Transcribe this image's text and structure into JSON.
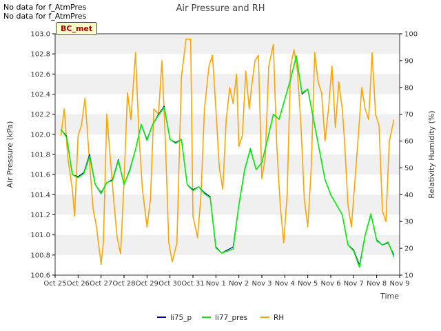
{
  "notes": [
    "No data for f_AtmPres",
    "No data for f_AtmPres"
  ],
  "badge": "BC_met",
  "chart_data": {
    "type": "line",
    "title": "Air Pressure and RH",
    "xlabel": "Time",
    "ylabel": "Air Pressure (kPa)",
    "y2label": "Relativity Humidity (%)",
    "x_ticks": [
      "Oct 25",
      "Oct 26",
      "Oct 27",
      "Oct 28",
      "Oct 29",
      "Oct 30",
      "Oct 31",
      "Nov 1",
      "Nov 2",
      "Nov 3",
      "Nov 4",
      "Nov 5",
      "Nov 6",
      "Nov 7",
      "Nov 8",
      "Nov 9"
    ],
    "xlim": [
      0,
      15
    ],
    "ylim": [
      100.6,
      103.0
    ],
    "y_ticks": [
      100.6,
      100.8,
      101.0,
      101.2,
      101.4,
      101.6,
      101.8,
      102.0,
      102.2,
      102.4,
      102.6,
      102.8,
      103.0
    ],
    "y2lim": [
      10,
      100
    ],
    "y2_ticks": [
      10,
      20,
      30,
      40,
      50,
      60,
      70,
      80,
      90,
      100
    ],
    "grid": "horizontal bands",
    "legend_position": "bottom",
    "colors": {
      "li75_p": "#0000aa",
      "li77_pres": "#00ee00",
      "RH": "#ffa500",
      "band": "#f0f0f0"
    },
    "series": [
      {
        "name": "li75_p",
        "axis": "left",
        "x": [
          0.25,
          0.5,
          0.75,
          1.0,
          1.25,
          1.5,
          1.75,
          2.0,
          2.25,
          2.5,
          2.75,
          3.0,
          3.25,
          3.5,
          3.75,
          4.0,
          4.25,
          4.5,
          4.75,
          5.0,
          5.25,
          5.5,
          5.75,
          6.0,
          6.25,
          6.5,
          6.75,
          7.0,
          7.25,
          7.5,
          7.75,
          8.0,
          8.25,
          8.5,
          8.75,
          9.0,
          9.25,
          9.5,
          9.75,
          10.0,
          10.25,
          10.5,
          10.75,
          11.0,
          11.25,
          11.5,
          11.75,
          12.0,
          12.25,
          12.5,
          12.75,
          13.0,
          13.25,
          13.5,
          13.75,
          14.0,
          14.25,
          14.5,
          14.75
        ],
        "values": [
          102.05,
          101.98,
          101.6,
          101.58,
          101.62,
          101.8,
          101.5,
          101.42,
          101.52,
          101.55,
          101.75,
          101.5,
          101.65,
          101.85,
          102.1,
          101.95,
          102.1,
          102.2,
          102.28,
          101.95,
          101.92,
          101.95,
          101.5,
          101.45,
          101.48,
          101.42,
          101.38,
          100.88,
          100.82,
          100.85,
          100.88,
          101.3,
          101.65,
          101.85,
          101.65,
          101.72,
          101.95,
          102.2,
          102.15,
          102.35,
          102.55,
          102.78,
          102.4,
          102.45,
          102.15,
          101.85,
          101.55,
          101.4,
          101.3,
          101.2,
          100.9,
          100.85,
          100.7,
          101.0,
          101.2,
          100.95,
          100.9,
          100.92,
          100.8
        ]
      },
      {
        "name": "li77_pres",
        "axis": "left",
        "x": [
          0.25,
          0.5,
          0.75,
          1.0,
          1.25,
          1.5,
          1.75,
          2.0,
          2.25,
          2.5,
          2.75,
          3.0,
          3.25,
          3.5,
          3.75,
          4.0,
          4.25,
          4.5,
          4.75,
          5.0,
          5.25,
          5.5,
          5.75,
          6.0,
          6.25,
          6.5,
          6.75,
          7.0,
          7.25,
          7.5,
          7.75,
          8.0,
          8.25,
          8.5,
          8.75,
          9.0,
          9.25,
          9.5,
          9.75,
          10.0,
          10.25,
          10.5,
          10.75,
          11.0,
          11.25,
          11.5,
          11.75,
          12.0,
          12.25,
          12.5,
          12.75,
          13.0,
          13.25,
          13.5,
          13.75,
          14.0,
          14.25,
          14.5,
          14.75
        ],
        "values": [
          102.05,
          101.97,
          101.6,
          101.57,
          101.61,
          101.78,
          101.5,
          101.41,
          101.52,
          101.54,
          101.74,
          101.5,
          101.64,
          101.85,
          102.1,
          101.94,
          102.1,
          102.19,
          102.27,
          101.95,
          101.91,
          101.95,
          101.5,
          101.44,
          101.48,
          101.41,
          101.37,
          100.87,
          100.82,
          100.84,
          100.86,
          101.3,
          101.64,
          101.86,
          101.65,
          101.72,
          101.95,
          102.2,
          102.15,
          102.35,
          102.55,
          102.78,
          102.41,
          102.45,
          102.15,
          101.85,
          101.55,
          101.4,
          101.3,
          101.2,
          100.9,
          100.84,
          100.68,
          101.0,
          101.21,
          100.94,
          100.9,
          100.93,
          100.78
        ]
      },
      {
        "name": "RH",
        "axis": "right",
        "x": [
          0.25,
          0.4,
          0.55,
          0.75,
          0.85,
          1.0,
          1.15,
          1.3,
          1.5,
          1.65,
          1.8,
          2.0,
          2.1,
          2.25,
          2.4,
          2.55,
          2.7,
          2.85,
          3.0,
          3.15,
          3.3,
          3.5,
          3.65,
          3.8,
          4.0,
          4.15,
          4.3,
          4.5,
          4.65,
          4.8,
          4.95,
          5.1,
          5.3,
          5.5,
          5.7,
          5.9,
          6.0,
          6.2,
          6.35,
          6.5,
          6.7,
          6.85,
          7.0,
          7.15,
          7.3,
          7.45,
          7.6,
          7.75,
          7.9,
          8.0,
          8.15,
          8.3,
          8.45,
          8.55,
          8.7,
          8.85,
          9.0,
          9.15,
          9.3,
          9.5,
          9.65,
          9.8,
          9.95,
          10.1,
          10.25,
          10.4,
          10.55,
          10.7,
          10.85,
          11.0,
          11.15,
          11.3,
          11.45,
          11.6,
          11.75,
          11.9,
          12.05,
          12.2,
          12.35,
          12.5,
          12.6,
          12.75,
          12.9,
          13.05,
          13.2,
          13.35,
          13.5,
          13.65,
          13.8,
          13.95,
          14.1,
          14.25,
          14.4,
          14.55,
          14.75
        ],
        "values": [
          62,
          72,
          54,
          42,
          32,
          62,
          66,
          76,
          52,
          35,
          28,
          14,
          22,
          70,
          54,
          38,
          24,
          18,
          45,
          78,
          68,
          93,
          62,
          42,
          28,
          38,
          72,
          70,
          90,
          60,
          22,
          15,
          22,
          84,
          98,
          98,
          32,
          24,
          40,
          72,
          88,
          92,
          72,
          50,
          42,
          68,
          80,
          74,
          85,
          58,
          62,
          86,
          72,
          80,
          90,
          92,
          46,
          54,
          88,
          96,
          58,
          36,
          22,
          40,
          88,
          94,
          86,
          66,
          38,
          28,
          50,
          93,
          82,
          78,
          60,
          72,
          88,
          65,
          82,
          72,
          60,
          36,
          28,
          45,
          62,
          80,
          72,
          68,
          93,
          70,
          66,
          34,
          30,
          60,
          68
        ]
      }
    ]
  }
}
